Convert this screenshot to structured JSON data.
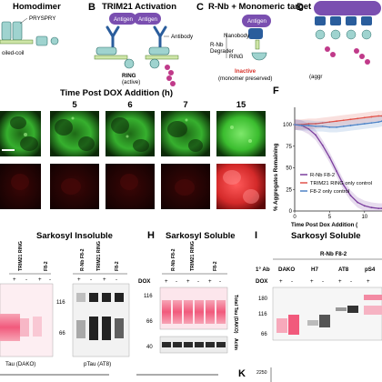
{
  "panels": {
    "a_title": "Homodimer",
    "a_pryspry": "PRYSPRY",
    "a_coiled": "oiled-coil",
    "b_letter": "B",
    "b_title": "TRIM21 Activation",
    "b_antigen": "Antigen",
    "b_antibody": "Antibody",
    "b_ring": "RING",
    "b_ring_sub": "(active)",
    "c_letter": "C",
    "c_title": "R-Nb + Monomeric target",
    "c_antigen": "Antigen",
    "c_nanobody": "Nanobody",
    "c_rnb": "R-Nb",
    "c_degrader": "Degrader",
    "c_ring": "RING",
    "c_inactive": "Inactive",
    "c_inactive_sub": "(monomer preserved)",
    "d_letter": "D",
    "d_sub": "(aggr",
    "e_time_title": "Time Post DOX Addition (h)",
    "e_times": [
      "5",
      "6",
      "7",
      "15"
    ],
    "f_letter": "F",
    "f_ylabel": "% Aggregates Remaining",
    "f_xlabel": "Time Post Dox Addition (",
    "h_letter": "H",
    "i_letter": "I",
    "k_letter": "K",
    "k_tick": "2250",
    "g_title": "Sarkosyl Insoluble",
    "h_title": "Sarkosyl Soluble",
    "i_title": "Sarkosyl Soluble",
    "g_cols_left": [
      "TRIM21 RING",
      "F8-2"
    ],
    "g_cols_right": [
      "R-Nb F8-2",
      "TRIM21 RING",
      "F8-2"
    ],
    "g_signs": [
      "+",
      "-",
      "+",
      "-"
    ],
    "g_label_left": "Tau (DAKO)",
    "g_label_right": "pTau (AT8)",
    "mw_left": [
      "116",
      "66"
    ],
    "h_cols": [
      "R-Nb F8-2",
      "TRIM21 RING",
      "F8-2"
    ],
    "h_dox": "DOX",
    "h_signs": [
      "+",
      "-",
      "+",
      "-",
      "+",
      "-"
    ],
    "h_mw": [
      "116",
      "66",
      "40"
    ],
    "h_total": "Total Tau (DAKO)",
    "h_actin": "Actin",
    "i_rnb": "R-Nb F8-2",
    "i_ab_label": "1° Ab",
    "i_abs": [
      "DAKO",
      "H7",
      "AT8",
      "pS4"
    ],
    "i_dox": "DOX",
    "i_signs": [
      "+",
      "-",
      "+",
      "-",
      "+",
      "-",
      "+"
    ],
    "i_mw": [
      "180",
      "116",
      "66"
    ]
  },
  "chart_data": {
    "type": "line",
    "xlabel": "Time Post Dox Addition (",
    "ylabel": "% Aggregates Remaining",
    "xlim": [
      0,
      12.5
    ],
    "ylim": [
      0,
      120
    ],
    "xticks": [
      0,
      5,
      10
    ],
    "yticks": [
      0,
      25,
      50,
      75,
      100
    ],
    "legend": "bottom-left",
    "series": [
      {
        "name": "R-Nb F8-2",
        "color": "#7b3f9e",
        "x": [
          0,
          1,
          2,
          3,
          4,
          5,
          6,
          7,
          8,
          9,
          10,
          11,
          12,
          12.5
        ],
        "y": [
          100,
          99,
          95,
          88,
          76,
          62,
          46,
          30,
          18,
          10,
          6,
          4,
          3,
          3
        ]
      },
      {
        "name": "TRIM21 RING only control",
        "color": "#e0524a",
        "x": [
          0,
          1,
          2,
          3,
          4,
          5,
          6,
          7,
          8,
          9,
          10,
          11,
          12,
          12.5
        ],
        "y": [
          100,
          100,
          101,
          101,
          102,
          103,
          104,
          105,
          106,
          107,
          108,
          109,
          110,
          110
        ]
      },
      {
        "name": "F8-2 only control",
        "color": "#4f83c6",
        "x": [
          0,
          1,
          2,
          3,
          4,
          5,
          6,
          7,
          8,
          9,
          10,
          11,
          12,
          12.5
        ],
        "y": [
          100,
          99,
          99,
          98,
          98,
          97,
          97,
          98,
          99,
          100,
          101,
          102,
          103,
          104
        ]
      }
    ]
  },
  "colors": {
    "green": "#36b02e",
    "red": "#d83030",
    "purple": "#7b3f9e",
    "pink": "#f05a7a"
  }
}
